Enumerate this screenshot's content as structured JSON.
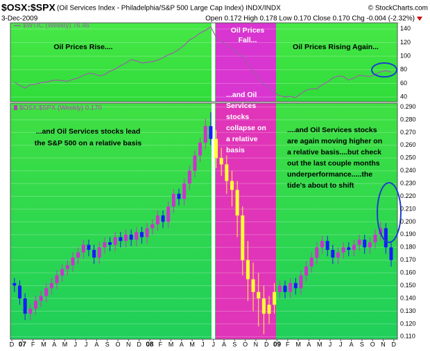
{
  "chart_data": {
    "type": "candlestick",
    "title": "$OSX:$SPX",
    "subtitle": "(Oil Services Index - Philadelphia/S&P 500 Large Cap Index) INDX/INDX",
    "credit": "© StockCharts.com",
    "date": "3-Dec-2009",
    "quote": "Open 0.172 High 0.178 Low 0.170 Close 0.170 Chg -0.004 (-2.32%)",
    "x_tick_labels": [
      "D",
      "07",
      "F",
      "M",
      "A",
      "M",
      "J",
      "J",
      "A",
      "S",
      "O",
      "N",
      "D",
      "08",
      "F",
      "M",
      "A",
      "M",
      "J",
      "J",
      "A",
      "S",
      "O",
      "N",
      "D",
      "09",
      "F",
      "M",
      "A",
      "M",
      "J",
      "J",
      "A",
      "S",
      "O",
      "N",
      "D"
    ],
    "upper_panel": {
      "label": "$WTIC (Weekly) 76.46",
      "color": "#9a5fa8",
      "ylim": [
        33,
        149
      ],
      "yticks": [
        40,
        60,
        80,
        100,
        120,
        140
      ],
      "values": [
        62,
        57,
        53,
        58,
        59,
        61,
        62,
        64,
        65,
        64,
        63,
        66,
        68,
        72,
        75,
        74,
        71,
        73,
        78,
        81,
        86,
        90,
        95,
        93,
        90,
        91,
        92,
        94,
        98,
        102,
        105,
        110,
        116,
        124,
        128,
        134,
        138,
        143,
        128,
        122,
        116,
        112,
        104,
        100,
        88,
        78,
        68,
        58,
        55,
        46,
        42,
        40,
        41,
        39,
        45,
        50,
        52,
        52,
        58,
        62,
        68,
        71,
        70,
        65,
        68,
        72,
        71,
        70,
        73,
        77,
        79,
        76.46
      ]
    },
    "lower_panel": {
      "label": "$OSX:$SPX (Weekly) 0.170",
      "label_color": "#b040b0",
      "ylim": [
        0.108,
        0.293
      ],
      "yticks": [
        {
          "value": 0.29,
          "label": "0.290"
        },
        {
          "value": 0.28,
          "label": "0.280"
        },
        {
          "value": 0.27,
          "label": "0.270"
        },
        {
          "value": 0.26,
          "label": "0.260"
        },
        {
          "value": 0.25,
          "label": "0.250"
        },
        {
          "value": 0.24,
          "label": "0.240"
        },
        {
          "value": 0.23,
          "label": "0.230"
        },
        {
          "value": 0.22,
          "label": "0.220"
        },
        {
          "value": 0.21,
          "label": "0.210"
        },
        {
          "value": 0.2,
          "label": "0.200"
        },
        {
          "value": 0.19,
          "label": "0.190"
        },
        {
          "value": 0.18,
          "label": "0.180"
        },
        {
          "value": 0.17,
          "label": "0.170"
        },
        {
          "value": 0.16,
          "label": "0.160"
        },
        {
          "value": 0.15,
          "label": "0.150"
        },
        {
          "value": 0.14,
          "label": "0.140"
        },
        {
          "value": 0.13,
          "label": "0.130"
        },
        {
          "value": 0.12,
          "label": "0.120"
        },
        {
          "value": 0.11,
          "label": "0.110"
        }
      ],
      "candles": [
        {
          "up_color": "#cc33cc",
          "down_color": "#1a1aff",
          "open": [
            0.152,
            0.15,
            0.14,
            0.128,
            0.132,
            0.138,
            0.142,
            0.148,
            0.152,
            0.158,
            0.163,
            0.166,
            0.172,
            0.176,
            0.182,
            0.178,
            0.172,
            0.18,
            0.184,
            0.182,
            0.188,
            0.185,
            0.19,
            0.186,
            0.192,
            0.188,
            0.195,
            0.198,
            0.205,
            0.2,
            0.212,
            0.222,
            0.218,
            0.23,
            0.24,
            0.252,
            0.262,
            0.275
          ],
          "high": [
            0.156,
            0.154,
            0.144,
            0.136,
            0.142,
            0.146,
            0.152,
            0.156,
            0.162,
            0.167,
            0.17,
            0.176,
            0.18,
            0.186,
            0.186,
            0.182,
            0.184,
            0.188,
            0.188,
            0.192,
            0.192,
            0.194,
            0.194,
            0.196,
            0.196,
            0.199,
            0.202,
            0.209,
            0.209,
            0.216,
            0.226,
            0.226,
            0.234,
            0.244,
            0.256,
            0.266,
            0.281,
            0.286
          ],
          "low": [
            0.145,
            0.135,
            0.123,
            0.123,
            0.127,
            0.133,
            0.137,
            0.143,
            0.147,
            0.153,
            0.158,
            0.161,
            0.167,
            0.171,
            0.173,
            0.167,
            0.167,
            0.175,
            0.177,
            0.177,
            0.18,
            0.18,
            0.181,
            0.181,
            0.183,
            0.183,
            0.19,
            0.193,
            0.195,
            0.195,
            0.207,
            0.213,
            0.213,
            0.225,
            0.235,
            0.247,
            0.257,
            0.26
          ],
          "close": [
            0.15,
            0.14,
            0.128,
            0.132,
            0.138,
            0.142,
            0.148,
            0.152,
            0.158,
            0.163,
            0.166,
            0.172,
            0.176,
            0.182,
            0.178,
            0.172,
            0.18,
            0.184,
            0.182,
            0.188,
            0.185,
            0.19,
            0.186,
            0.192,
            0.188,
            0.195,
            0.198,
            0.205,
            0.2,
            0.212,
            0.222,
            0.218,
            0.23,
            0.24,
            0.252,
            0.262,
            0.275,
            0.265
          ]
        },
        {
          "up_color": "#ffff33",
          "down_color": "#ffff33",
          "open": [
            0.265,
            0.25,
            0.245,
            0.232,
            0.225,
            0.205,
            0.17,
            0.155,
            0.145,
            0.14,
            0.128,
            0.135
          ],
          "high": [
            0.272,
            0.258,
            0.252,
            0.24,
            0.232,
            0.212,
            0.185,
            0.168,
            0.16,
            0.15,
            0.142,
            0.152
          ],
          "low": [
            0.242,
            0.236,
            0.222,
            0.212,
            0.188,
            0.158,
            0.138,
            0.13,
            0.118,
            0.112,
            0.12,
            0.128
          ],
          "close": [
            0.25,
            0.245,
            0.232,
            0.225,
            0.205,
            0.17,
            0.155,
            0.145,
            0.14,
            0.128,
            0.135,
            0.145
          ]
        },
        {
          "up_color": "#cc33cc",
          "down_color": "#1a1aff",
          "open": [
            0.145,
            0.15,
            0.145,
            0.152,
            0.148,
            0.158,
            0.165,
            0.172,
            0.18,
            0.185,
            0.178,
            0.172,
            0.176,
            0.18,
            0.178,
            0.182,
            0.186,
            0.18,
            0.184,
            0.19,
            0.195,
            0.18
          ],
          "high": [
            0.154,
            0.154,
            0.156,
            0.156,
            0.162,
            0.169,
            0.176,
            0.184,
            0.189,
            0.189,
            0.182,
            0.18,
            0.184,
            0.184,
            0.186,
            0.19,
            0.19,
            0.188,
            0.194,
            0.2,
            0.199,
            0.184
          ],
          "low": [
            0.14,
            0.14,
            0.14,
            0.143,
            0.143,
            0.153,
            0.16,
            0.167,
            0.175,
            0.173,
            0.167,
            0.167,
            0.171,
            0.173,
            0.173,
            0.177,
            0.175,
            0.175,
            0.179,
            0.185,
            0.175,
            0.165
          ],
          "close": [
            0.15,
            0.145,
            0.152,
            0.148,
            0.158,
            0.165,
            0.172,
            0.18,
            0.185,
            0.178,
            0.172,
            0.176,
            0.18,
            0.178,
            0.182,
            0.186,
            0.18,
            0.184,
            0.19,
            0.195,
            0.18,
            0.17
          ]
        }
      ]
    },
    "annotations": {
      "oil_rise": "Oil Prices Rise....",
      "oil_fall": [
        "Oil Prices",
        "Fall..."
      ],
      "oil_rising_again": "Oil Prices Rising Again...",
      "osx_lead": [
        "...and Oil Services stocks lead",
        "the S&P 500 on a relative basis"
      ],
      "osx_collapse": [
        "...and Oil",
        "Services",
        "stocks",
        "collapse on",
        "a relative",
        "basis"
      ],
      "osx_higher": [
        "....and Oil Services stocks",
        "are again moving higher on",
        "a relative basis....but check",
        "out the last couple months",
        "underperformance.....the",
        "tide's about to shift"
      ]
    }
  }
}
